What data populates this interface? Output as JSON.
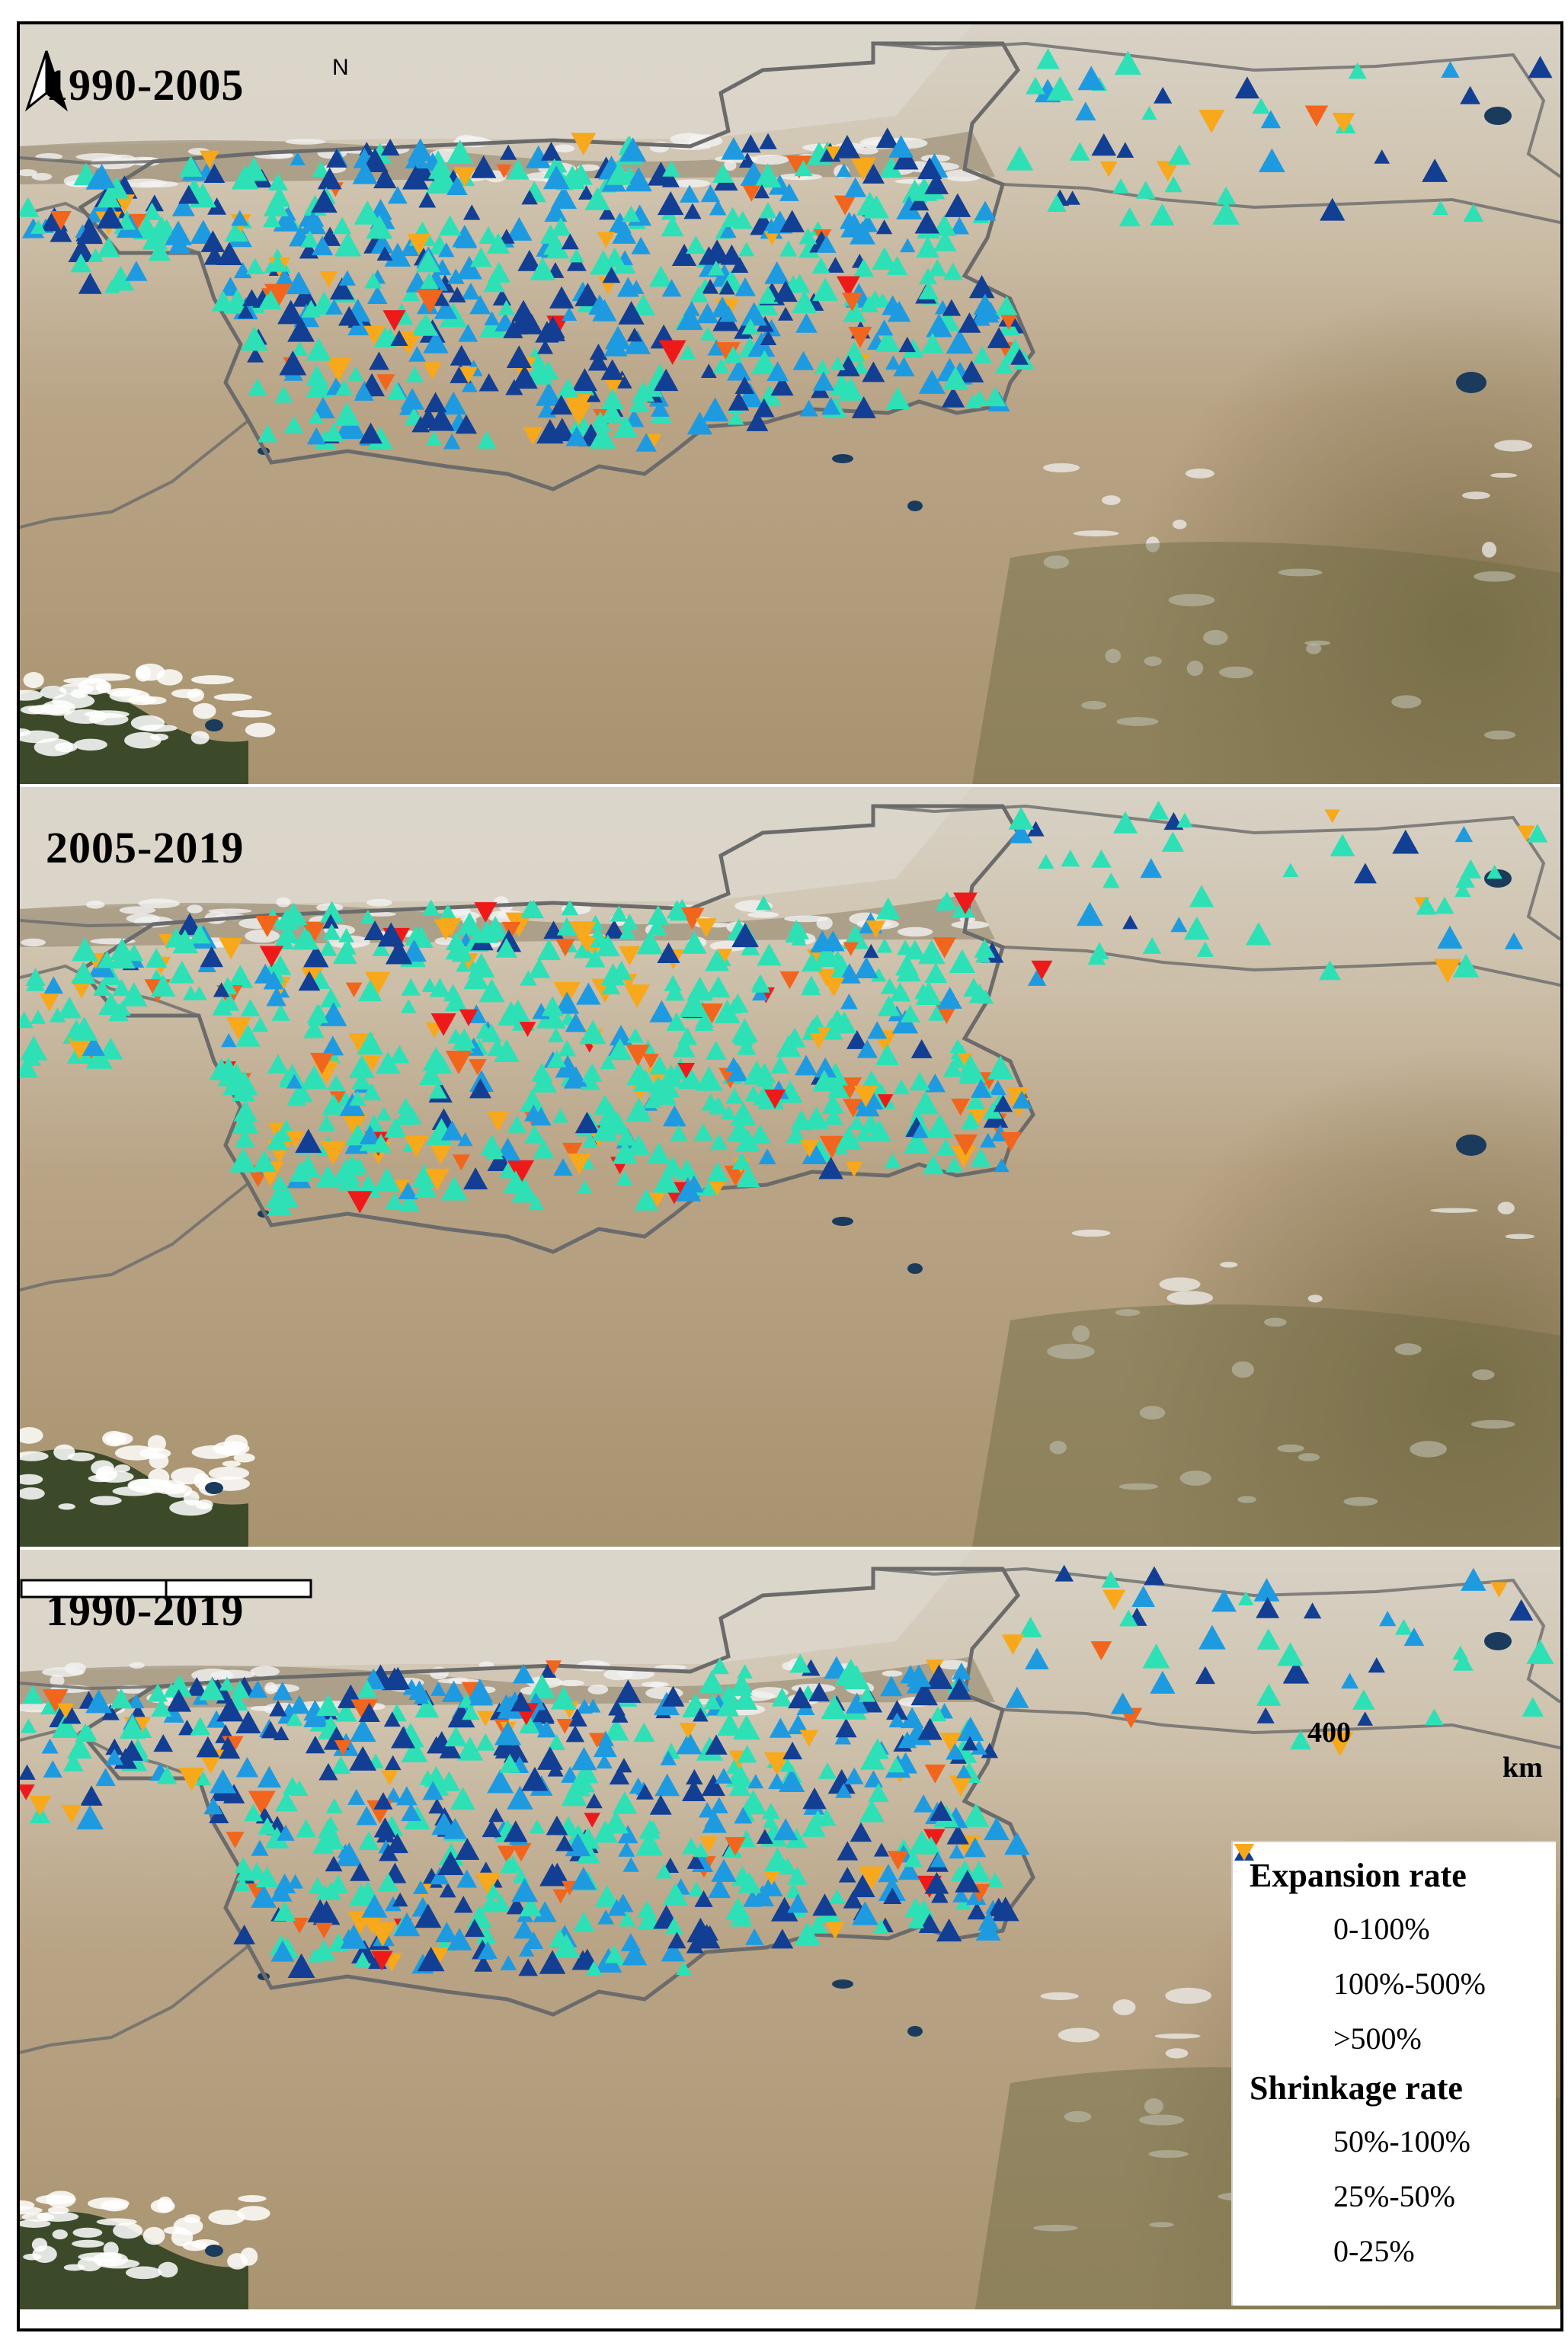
{
  "panels": [
    {
      "label": "1990-2005",
      "show_north": true,
      "show_scale": false,
      "show_legend": false,
      "seed": 11,
      "mix": {
        "expansion_0_100": 0.38,
        "expansion_100_500": 0.28,
        "expansion_gt_500": 0.26,
        "shrinkage_50_100": 0.01,
        "shrinkage_25_50": 0.03,
        "shrinkage_0_25": 0.04
      }
    },
    {
      "label": "2005-2019",
      "show_north": false,
      "show_scale": false,
      "show_legend": false,
      "seed": 29,
      "mix": {
        "expansion_0_100": 0.62,
        "expansion_100_500": 0.14,
        "expansion_gt_500": 0.06,
        "shrinkage_50_100": 0.03,
        "shrinkage_25_50": 0.06,
        "shrinkage_0_25": 0.09
      }
    },
    {
      "label": "1990-2019",
      "show_north": false,
      "show_scale": true,
      "show_legend": true,
      "seed": 47,
      "mix": {
        "expansion_0_100": 0.36,
        "expansion_100_500": 0.26,
        "expansion_gt_500": 0.3,
        "shrinkage_50_100": 0.01,
        "shrinkage_25_50": 0.03,
        "shrinkage_0_25": 0.04
      }
    }
  ],
  "north_arrow": {
    "label": "N"
  },
  "scale": {
    "value": "400",
    "unit": "km"
  },
  "legend": {
    "expansion_title": "Expansion rate",
    "shrinkage_title": "Shrinkage rate",
    "expansion_items": [
      {
        "label": "0-100%",
        "color": "#2ee0b6",
        "direction": "up"
      },
      {
        "label": "100%-500%",
        "color": "#1e9be0",
        "direction": "up"
      },
      {
        "label": ">500%",
        "color": "#123f94",
        "direction": "up"
      }
    ],
    "shrinkage_items": [
      {
        "label": "50%-100%",
        "color": "#ee1a1a",
        "direction": "down"
      },
      {
        "label": "25%-50%",
        "color": "#f2651c",
        "direction": "down"
      },
      {
        "label": "0-25%",
        "color": "#f7a81b",
        "direction": "down"
      }
    ]
  }
}
